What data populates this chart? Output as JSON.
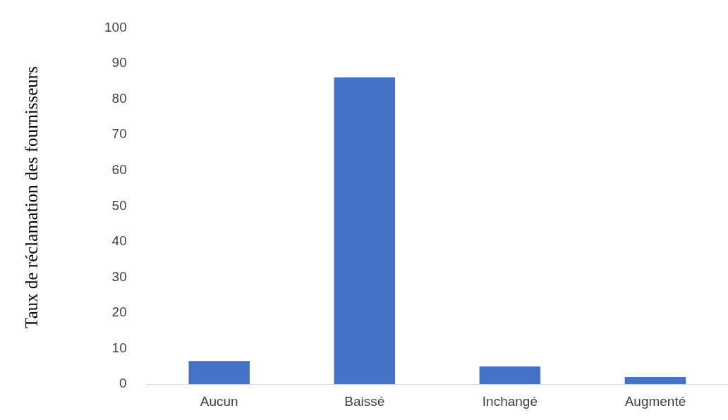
{
  "chart_data": {
    "type": "bar",
    "ylabel": "Taux de réclamation des fournisseurs",
    "categories": [
      "Aucun",
      "Baissé",
      "Inchangé",
      "Augmenté"
    ],
    "values": [
      6.5,
      86.1,
      5,
      2
    ],
    "color": "#4472c4",
    "ylim": [
      0,
      100
    ],
    "yticks": [
      0,
      10,
      20,
      30,
      40,
      50,
      60,
      70,
      80,
      90,
      100
    ],
    "grid": false,
    "legend": false
  }
}
